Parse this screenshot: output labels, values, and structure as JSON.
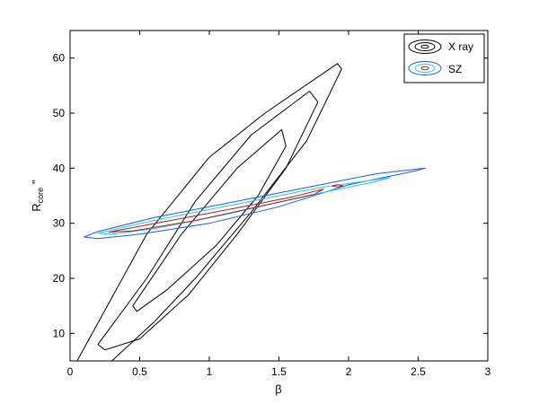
{
  "chart_data": {
    "type": "contour",
    "title": "",
    "xlabel": "β",
    "ylabel_main": "R",
    "ylabel_sub": "core",
    "ylabel_suffix": "\"",
    "xlim": [
      0,
      3
    ],
    "ylim": [
      5,
      65
    ],
    "xticks": [
      0,
      0.5,
      1,
      1.5,
      2,
      2.5,
      3
    ],
    "xtick_labels": [
      "0",
      "0.5",
      "1",
      "1.5",
      "2",
      "2.5",
      "3"
    ],
    "yticks": [
      10,
      20,
      30,
      40,
      50,
      60
    ],
    "ytick_labels": [
      "10",
      "20",
      "30",
      "40",
      "50",
      "60"
    ],
    "grid": false,
    "legend_position": "top-right",
    "legend": [
      {
        "label": "X ray",
        "color": "#000000"
      },
      {
        "label": "SZ",
        "color": "#1e78e6"
      }
    ],
    "series": [
      {
        "name": "X ray",
        "contours": [
          {
            "level": "outer",
            "color": "#000000",
            "points": [
              [
                0.05,
                3
              ],
              [
                0.55,
                28
              ],
              [
                1.0,
                42
              ],
              [
                1.4,
                50
              ],
              [
                1.92,
                59
              ],
              [
                1.95,
                58
              ],
              [
                1.7,
                45
              ],
              [
                1.3,
                32
              ],
              [
                0.9,
                20
              ],
              [
                0.6,
                12
              ],
              [
                0.3,
                5
              ],
              [
                0.1,
                2
              ]
            ]
          },
          {
            "level": "middle",
            "color": "#000000",
            "points": [
              [
                0.2,
                8
              ],
              [
                0.55,
                20
              ],
              [
                0.9,
                34
              ],
              [
                1.3,
                46
              ],
              [
                1.72,
                54
              ],
              [
                1.78,
                52
              ],
              [
                1.55,
                40
              ],
              [
                1.2,
                28
              ],
              [
                0.85,
                17
              ],
              [
                0.5,
                9
              ],
              [
                0.25,
                7
              ]
            ]
          },
          {
            "level": "inner",
            "color": "#000000",
            "points": [
              [
                0.45,
                15
              ],
              [
                0.8,
                28
              ],
              [
                1.2,
                40
              ],
              [
                1.52,
                47
              ],
              [
                1.55,
                44
              ],
              [
                1.35,
                35
              ],
              [
                1.05,
                26
              ],
              [
                0.7,
                18
              ],
              [
                0.48,
                14
              ]
            ]
          }
        ]
      },
      {
        "name": "SZ",
        "contours": [
          {
            "level": "outer",
            "color": "#1e5adc",
            "points": [
              [
                0.1,
                27.5
              ],
              [
                0.2,
                28.5
              ],
              [
                0.6,
                31
              ],
              [
                1.2,
                34
              ],
              [
                1.8,
                37
              ],
              [
                2.2,
                39
              ],
              [
                2.55,
                40
              ],
              [
                2.48,
                39.5
              ],
              [
                2.0,
                37
              ],
              [
                1.5,
                33
              ],
              [
                1.0,
                30
              ],
              [
                0.5,
                28
              ],
              [
                0.2,
                27.2
              ]
            ]
          },
          {
            "level": "middle",
            "color": "#29c8e8",
            "points": [
              [
                0.2,
                28.2
              ],
              [
                0.6,
                30.5
              ],
              [
                1.2,
                33.5
              ],
              [
                1.8,
                36.5
              ],
              [
                2.3,
                38.3
              ],
              [
                2.2,
                37.6
              ],
              [
                1.7,
                35
              ],
              [
                1.1,
                31.5
              ],
              [
                0.6,
                29
              ],
              [
                0.3,
                28
              ]
            ]
          },
          {
            "level": "inner",
            "color": "#a0202a",
            "points": [
              [
                0.28,
                28.4
              ],
              [
                0.7,
                30.4
              ],
              [
                1.2,
                32.8
              ],
              [
                1.6,
                34.8
              ],
              [
                1.82,
                36.2
              ],
              [
                1.75,
                35.2
              ],
              [
                1.35,
                33.0
              ],
              [
                0.9,
                30.5
              ],
              [
                0.45,
                28.6
              ]
            ]
          },
          {
            "level": "peak",
            "color": "#a0202a",
            "points": [
              [
                1.88,
                36.8
              ],
              [
                1.92,
                37.0
              ],
              [
                1.96,
                36.8
              ],
              [
                1.92,
                36.6
              ]
            ]
          }
        ]
      }
    ]
  }
}
